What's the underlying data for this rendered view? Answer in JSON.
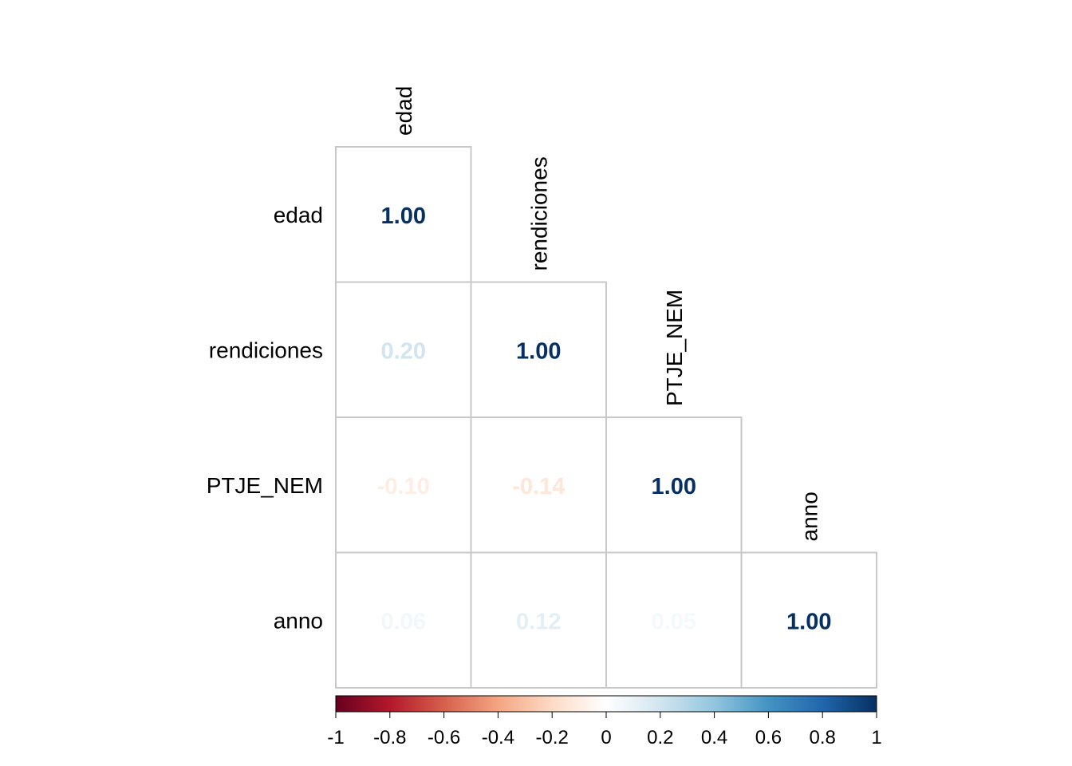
{
  "chart_data": {
    "type": "heatmap",
    "variables": [
      "edad",
      "rendiciones",
      "PTJE_NEM",
      "anno"
    ],
    "matrix": [
      [
        1.0,
        null,
        null,
        null
      ],
      [
        0.2,
        1.0,
        null,
        null
      ],
      [
        -0.1,
        -0.14,
        1.0,
        null
      ],
      [
        0.06,
        0.12,
        0.05,
        1.0
      ]
    ],
    "labels": [
      [
        "1.00",
        "",
        "",
        ""
      ],
      [
        "0.20",
        "1.00",
        "",
        ""
      ],
      [
        "-0.10",
        "-0.14",
        "1.00",
        ""
      ],
      [
        "0.06",
        "0.12",
        "0.05",
        "1.00"
      ]
    ],
    "triangle": "lower",
    "colorbar": {
      "range": [
        -1,
        1
      ],
      "ticks": [
        "-1",
        "-0.8",
        "-0.6",
        "-0.4",
        "-0.2",
        "0",
        "0.2",
        "0.4",
        "0.6",
        "0.8",
        "1"
      ],
      "colors": [
        "#67001f",
        "#b2182b",
        "#d6604d",
        "#f4a582",
        "#fddbc7",
        "#ffffff",
        "#d1e5f0",
        "#92c5de",
        "#4393c3",
        "#2166ac",
        "#053061"
      ]
    }
  }
}
